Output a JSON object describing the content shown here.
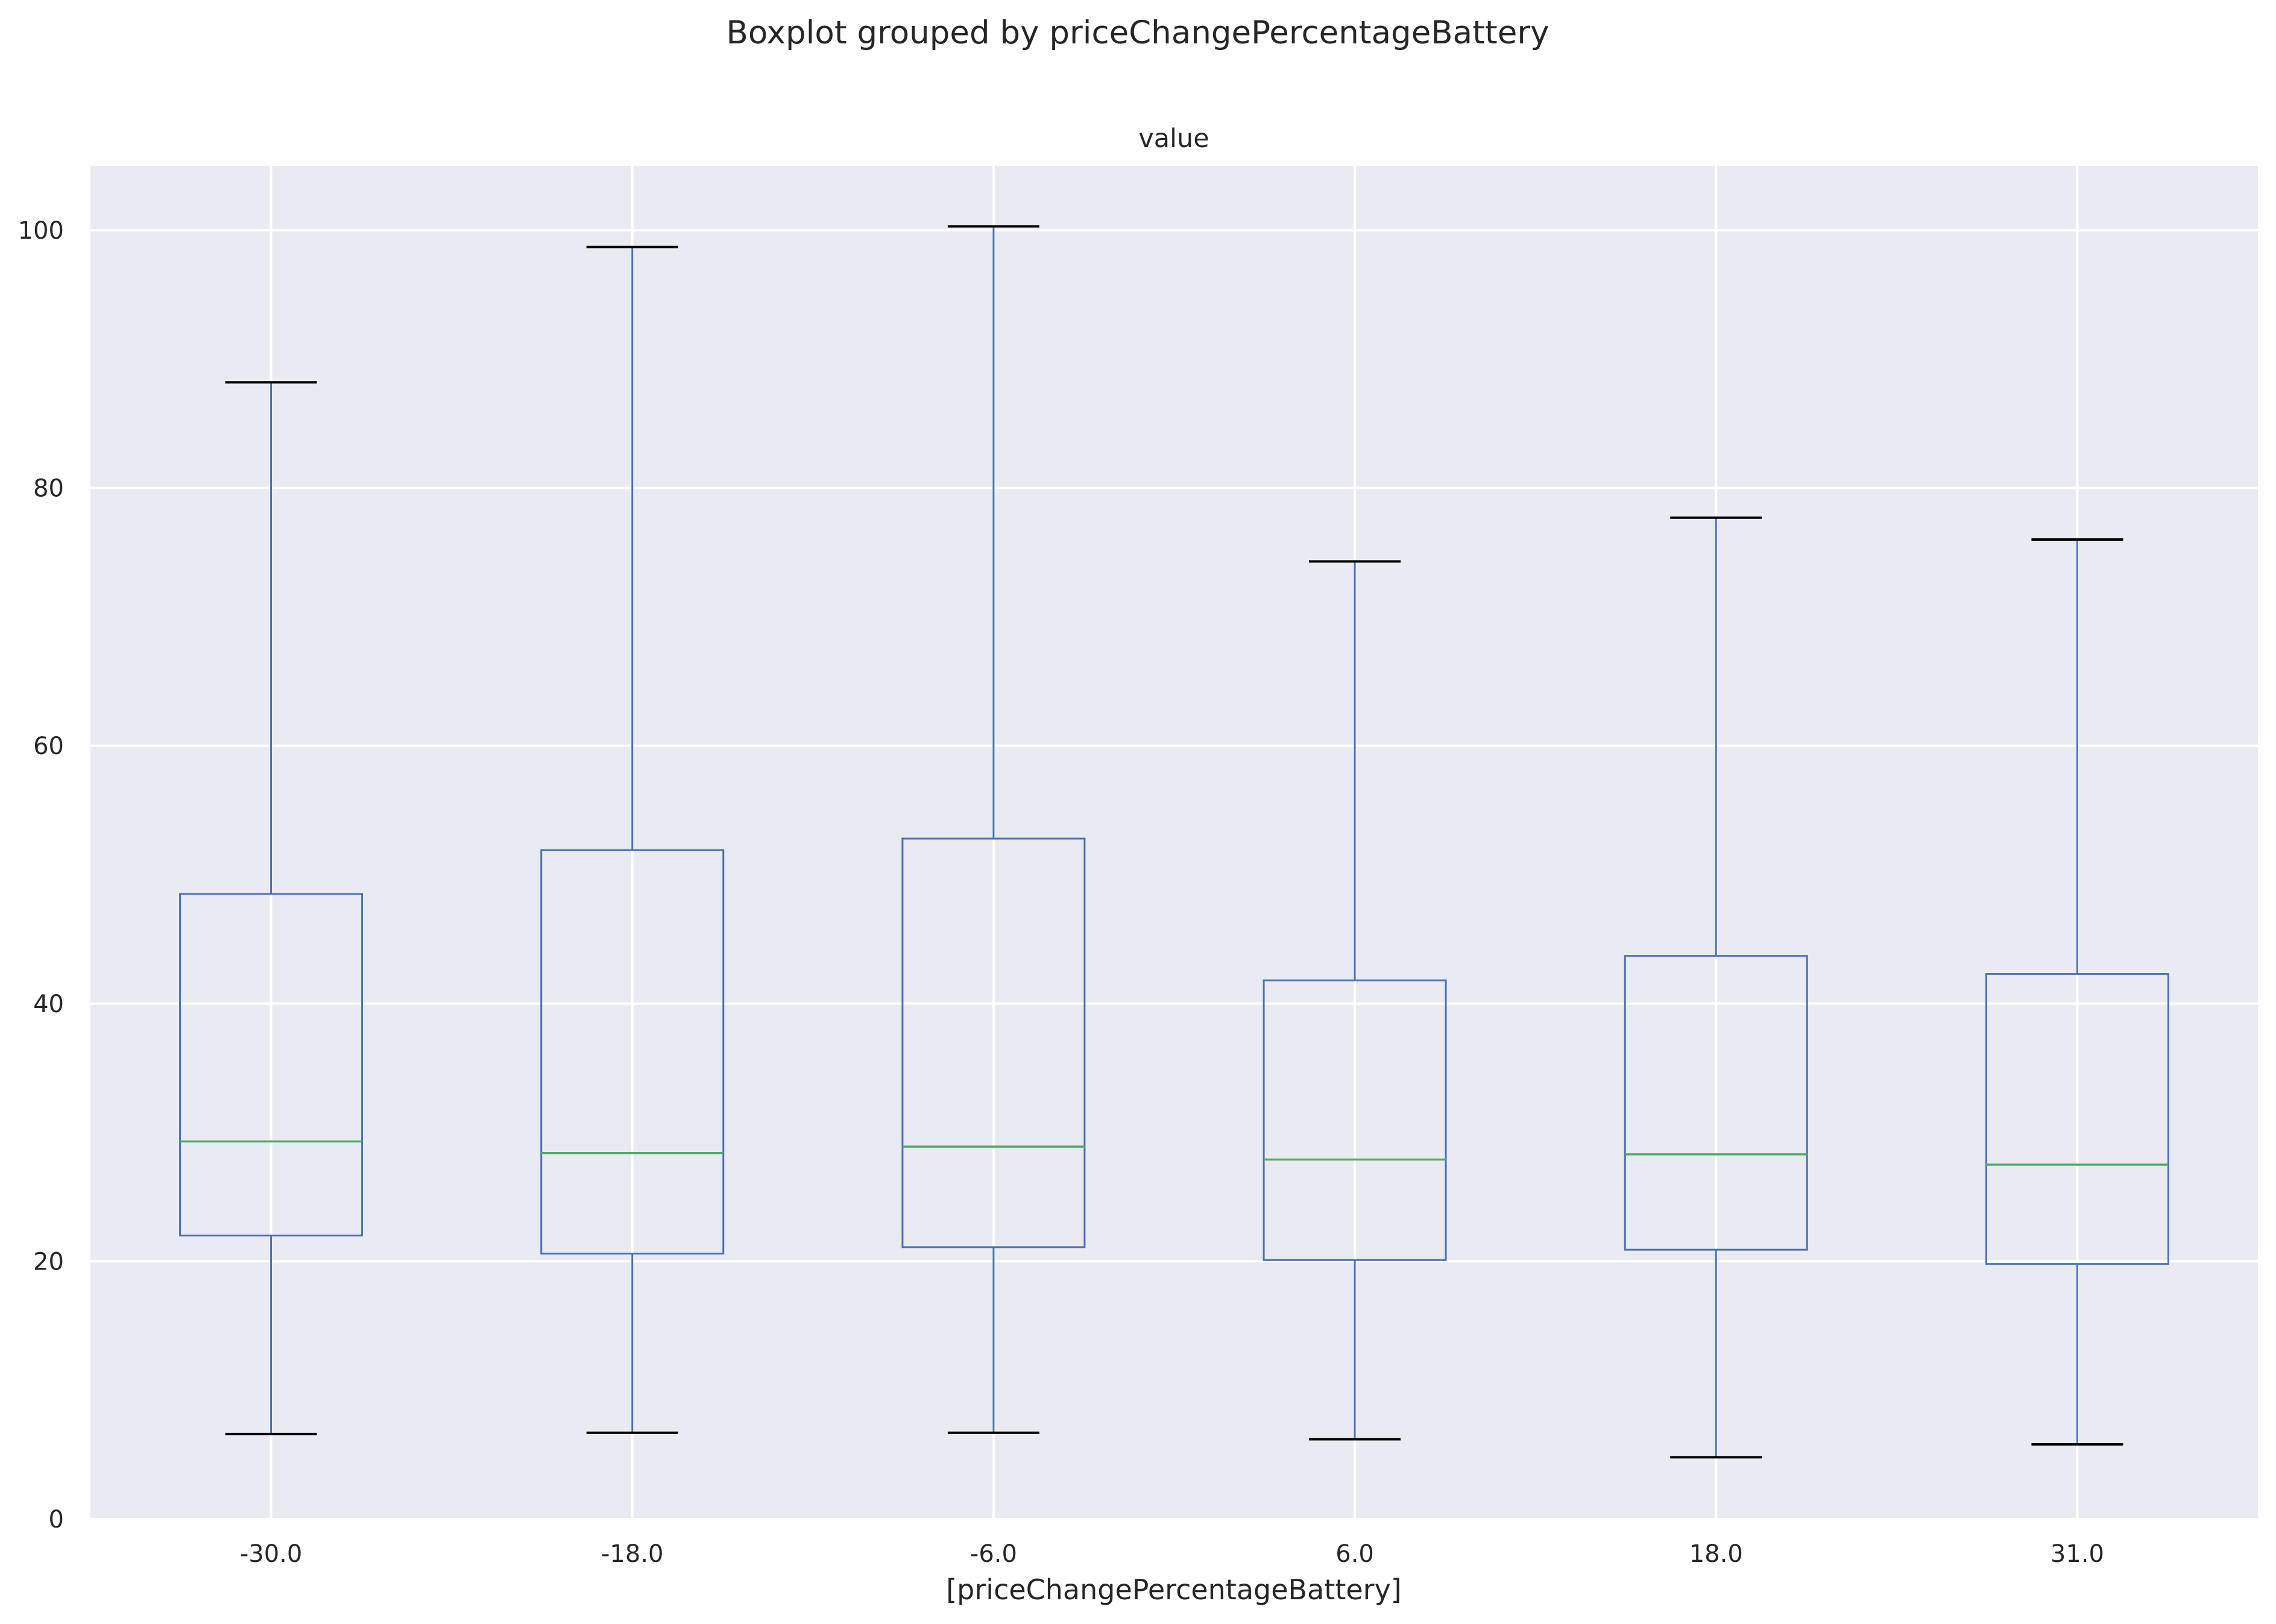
{
  "chart_data": {
    "type": "boxplot",
    "title": "Boxplot grouped by priceChangePercentageBattery",
    "subtitle": "value",
    "xlabel": "[priceChangePercentageBattery]",
    "ylabel": "",
    "ylim": [
      0,
      105
    ],
    "yticks": [
      0,
      20,
      40,
      60,
      80,
      100
    ],
    "grid": true,
    "colors": {
      "background": "#eaeaf2",
      "grid": "#ffffff",
      "box": "#4c72b0",
      "median": "#55a868",
      "cap": "#000000"
    },
    "categories": [
      "-30.0",
      "-18.0",
      "-6.0",
      "6.0",
      "18.0",
      "31.0"
    ],
    "boxes": [
      {
        "whisker_low": 6.6,
        "q1": 22.0,
        "median": 29.3,
        "q3": 48.5,
        "whisker_high": 88.2
      },
      {
        "whisker_low": 6.7,
        "q1": 20.6,
        "median": 28.4,
        "q3": 51.9,
        "whisker_high": 98.7
      },
      {
        "whisker_low": 6.7,
        "q1": 21.1,
        "median": 28.9,
        "q3": 52.8,
        "whisker_high": 100.3
      },
      {
        "whisker_low": 6.2,
        "q1": 20.1,
        "median": 27.9,
        "q3": 41.8,
        "whisker_high": 74.3
      },
      {
        "whisker_low": 4.8,
        "q1": 20.9,
        "median": 28.3,
        "q3": 43.7,
        "whisker_high": 77.7
      },
      {
        "whisker_low": 5.8,
        "q1": 19.8,
        "median": 27.5,
        "q3": 42.3,
        "whisker_high": 76.0
      }
    ]
  }
}
